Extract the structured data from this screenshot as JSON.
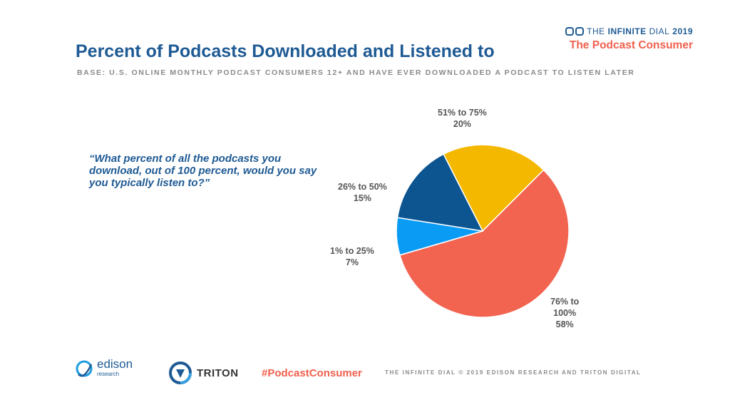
{
  "header": {
    "title": "Percent of Podcasts Downloaded and Listened to",
    "base": "BASE: U.S. ONLINE MONTHLY PODCAST CONSUMERS 12+ AND HAVE EVER DOWNLOADED A PODCAST TO LISTEN LATER"
  },
  "brand": {
    "prefix": "THE",
    "name": "INFINITE",
    "suffix": "DIAL",
    "year": "2019",
    "subtitle": "The Podcast Consumer"
  },
  "question": "“What percent of all the podcasts you download, out of 100 percent, would you say you typically listen to?”",
  "chart_data": {
    "type": "pie",
    "slices": [
      {
        "label": "51% to 75%",
        "value": 20,
        "value_label": "20%",
        "color": "#f5b800"
      },
      {
        "label": "76% to 100%",
        "value": 58,
        "value_label": "58%",
        "color": "#f26350"
      },
      {
        "label": "1% to 25%",
        "value": 7,
        "value_label": "7%",
        "color": "#0a9cf5"
      },
      {
        "label": "26% to 50%",
        "value": 15,
        "value_label": "15%",
        "color": "#0c5591"
      }
    ],
    "legend": "none"
  },
  "labels_text": {
    "s0": [
      "51% to 75%",
      "20%"
    ],
    "s1": [
      "76% to",
      "100%",
      "58%"
    ],
    "s2": [
      "1% to 25%",
      "7%"
    ],
    "s3": [
      "26% to 50%",
      "15%"
    ]
  },
  "footer": {
    "edison": "edison",
    "edison_sub": "research",
    "triton": "TRITON",
    "hashtag": "#PodcastConsumer",
    "copyright": "THE INFINITE DIAL   © 2019 EDISON RESEARCH AND TRITON DIGITAL"
  }
}
